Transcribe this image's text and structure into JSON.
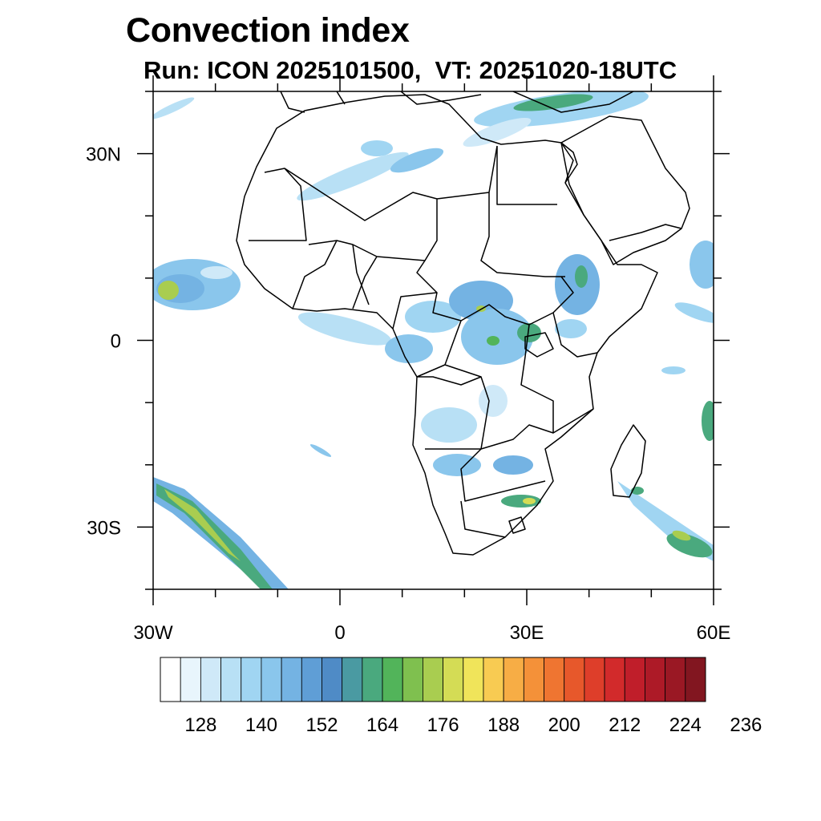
{
  "title": "Convection index",
  "subtitle": "Run: ICON 2025101500,  VT: 20251020-18UTC",
  "map": {
    "lon_range": [
      -30,
      60
    ],
    "lat_range": [
      -40,
      40
    ],
    "lat_labels": [
      "30N",
      "0",
      "30S"
    ],
    "lon_labels": [
      "30W",
      "0",
      "30E",
      "60E"
    ]
  },
  "colorbar": {
    "colors": [
      "#ffffff",
      "#e8f5fc",
      "#cfe9f8",
      "#b8e0f5",
      "#a0d5f2",
      "#8ac6ec",
      "#74b3e3",
      "#5f9ed6",
      "#4f8bc6",
      "#4a9aa2",
      "#4aa97e",
      "#52b45a",
      "#7fc04f",
      "#a9cd50",
      "#d4dc55",
      "#f0e45a",
      "#f8cb52",
      "#f7ad45",
      "#f49139",
      "#ef7531",
      "#e7582b",
      "#de3e2a",
      "#d22a2b",
      "#c01e2a",
      "#ad1a27",
      "#9a1824",
      "#821620"
    ],
    "labels": [
      "128",
      "140",
      "152",
      "164",
      "176",
      "188",
      "200",
      "212",
      "224",
      "236"
    ]
  }
}
